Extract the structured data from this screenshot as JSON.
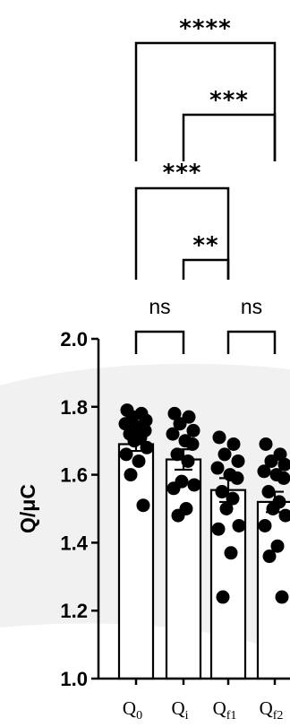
{
  "chart_data": {
    "type": "bar",
    "title": "",
    "xlabel": "",
    "ylabel": "Q/μC",
    "ylim": [
      1.0,
      2.0
    ],
    "yticks": [
      "1.0",
      "1.2",
      "1.4",
      "1.6",
      "1.8",
      "2.0"
    ],
    "categories": [
      {
        "base": "Q",
        "sub": "0"
      },
      {
        "base": "Q",
        "sub": "i"
      },
      {
        "base": "Q",
        "sub": "f1"
      },
      {
        "base": "Q",
        "sub": "f2"
      }
    ],
    "values": [
      1.69,
      1.645,
      1.555,
      1.52
    ],
    "errors": [
      0.02,
      0.03,
      0.035,
      0.03
    ],
    "points": [
      [
        1.79,
        1.78,
        1.77,
        1.76,
        1.75,
        1.74,
        1.73,
        1.72,
        1.71,
        1.7,
        1.68,
        1.66,
        1.64,
        1.6,
        1.51
      ],
      [
        1.78,
        1.77,
        1.75,
        1.73,
        1.72,
        1.7,
        1.69,
        1.66,
        1.64,
        1.58,
        1.57,
        1.56,
        1.5,
        1.48
      ],
      [
        1.71,
        1.69,
        1.66,
        1.64,
        1.62,
        1.6,
        1.59,
        1.55,
        1.53,
        1.5,
        1.45,
        1.44,
        1.37,
        1.24
      ],
      [
        1.69,
        1.66,
        1.64,
        1.63,
        1.61,
        1.6,
        1.59,
        1.55,
        1.52,
        1.5,
        1.48,
        1.45,
        1.39,
        1.36,
        1.24
      ]
    ],
    "comparisons": [
      {
        "from": 0,
        "to": 3,
        "label": "****"
      },
      {
        "from": 1,
        "to": 3,
        "label": "***"
      },
      {
        "from": 0,
        "to": 2,
        "label": "***"
      },
      {
        "from": 1,
        "to": 2,
        "label": "**"
      },
      {
        "from": 0,
        "to": 1,
        "label": "ns"
      },
      {
        "from": 2,
        "to": 3,
        "label": "ns"
      }
    ],
    "colors": {
      "bar_fill": "#ffffff",
      "stroke": "#000000",
      "point": "#000000",
      "background_swoosh": "#f1f1f1"
    }
  }
}
